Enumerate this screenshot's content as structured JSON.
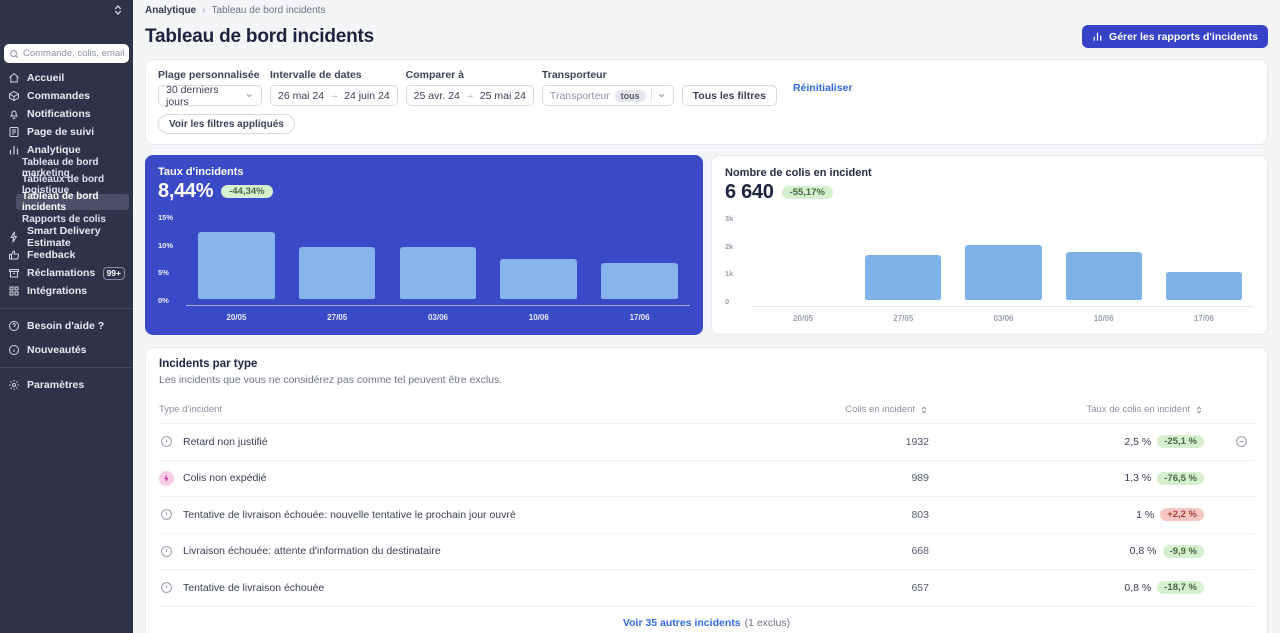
{
  "sidebar": {
    "search_placeholder": "Commande, colis, email",
    "nav": [
      {
        "label": "Accueil",
        "icon": "home"
      },
      {
        "label": "Commandes",
        "icon": "package"
      },
      {
        "label": "Notifications",
        "icon": "bell"
      },
      {
        "label": "Page de suivi",
        "icon": "tracking-page"
      },
      {
        "label": "Analytique",
        "icon": "bar-chart",
        "children": [
          "Tableau de bord marketing",
          "Tableaux de bord logistique",
          "Tableau de bord incidents",
          "Rapports de colis"
        ],
        "active_child": "Tableau de bord incidents"
      },
      {
        "label": "Smart Delivery Estimate",
        "icon": "lightning"
      },
      {
        "label": "Feedback",
        "icon": "thumbs-up"
      },
      {
        "label": "Réclamations",
        "icon": "claims-box",
        "badge": "99+"
      },
      {
        "label": "Intégrations",
        "icon": "integrations"
      }
    ],
    "help": [
      {
        "label": "Besoin d'aide ?",
        "icon": "help-circle"
      },
      {
        "label": "Nouveautés",
        "icon": "info-circle"
      }
    ],
    "settings_label": "Paramètres"
  },
  "header": {
    "breadcrumb": [
      "Analytique",
      "Tableau de bord incidents"
    ],
    "title": "Tableau de bord incidents",
    "manage_button": "Gérer les rapports d'incidents"
  },
  "filters": {
    "custom_range_label": "Plage personnalisée",
    "custom_range_value": "30 derniers jours",
    "date_interval_label": "Intervalle de dates",
    "date_from": "26 mai 24",
    "date_to": "24 juin 24",
    "compare_label": "Comparer à",
    "compare_from": "25 avr. 24",
    "compare_to": "25 mai 24",
    "carrier_label": "Transporteur",
    "carrier_placeholder": "Transporteur",
    "carrier_badge": "tous",
    "all_filters_button": "Tous les filtres",
    "reset_link": "Réinitialiser",
    "applied_filters_button": "Voir les filtres appliqués"
  },
  "chart_data": [
    {
      "type": "bar",
      "title": "Taux d'incidents",
      "metric_value": "8,44%",
      "delta": "-44,34%",
      "categories": [
        "20/05",
        "27/05",
        "03/06",
        "10/06",
        "17/06"
      ],
      "values": [
        11.9,
        9.3,
        9.3,
        7.1,
        6.5
      ],
      "unit": "%",
      "ylim": [
        0,
        15
      ],
      "yticks": [
        "15%",
        "10%",
        "5%",
        "0%"
      ],
      "bar_color": "#85b5ea",
      "grid": false,
      "legend": "none"
    },
    {
      "type": "bar",
      "title": "Nombre de colis en incident",
      "metric_value": "6 640",
      "delta": "-55,17%",
      "categories": [
        "20/05",
        "27/05",
        "03/06",
        "10/06",
        "17/06"
      ],
      "values": [
        0,
        1600,
        1980,
        1700,
        1000
      ],
      "unit": "colis",
      "ylim": [
        0,
        3000
      ],
      "yticks": [
        "3k",
        "2k",
        "1k",
        "0"
      ],
      "bar_color": "#7db3e8",
      "grid": false,
      "legend": "none"
    }
  ],
  "table": {
    "title": "Incidents par type",
    "subtitle": "Les incidents que vous ne considérez pas comme tel peuvent être exclus.",
    "columns": [
      "Type d'incident",
      "Colis en incident",
      "Taux de colis en incident"
    ],
    "rows": [
      {
        "icon": "info",
        "label": "Retard non justifié",
        "count": "1932",
        "rate": "2,5 %",
        "delta": "-25,1 %",
        "delta_type": "down",
        "exclude_icon": true
      },
      {
        "icon": "spark",
        "label": "Colis non expédié",
        "count": "989",
        "rate": "1,3 %",
        "delta": "-76,5 %",
        "delta_type": "down",
        "exclude_icon": false
      },
      {
        "icon": "info",
        "label": "Tentative de livraison échouée: nouvelle tentative le prochain jour ouvré",
        "count": "803",
        "rate": "1 %",
        "delta": "+2,2 %",
        "delta_type": "up",
        "exclude_icon": false
      },
      {
        "icon": "info",
        "label": "Livraison échouée: attente d'information du destinataire",
        "count": "668",
        "rate": "0,8 %",
        "delta": "-9,9 %",
        "delta_type": "down",
        "exclude_icon": false
      },
      {
        "icon": "info",
        "label": "Tentative de livraison échouée",
        "count": "657",
        "rate": "0,8 %",
        "delta": "-18,7 %",
        "delta_type": "down",
        "exclude_icon": false
      }
    ],
    "footer_link": "Voir 35 autres incidents",
    "footer_note": "(1 exclus)"
  },
  "colors": {
    "sidebar_bg": "#2e3447",
    "accent_blue": "#3a4ac6",
    "button_blue": "#3642c8",
    "bar_blue_left": "#85b5ea",
    "bar_blue_right": "#7db3e8",
    "badge_green_bg": "#d6efcf",
    "badge_green_text": "#44693c",
    "badge_red_bg": "#f5c6c2",
    "badge_red_text": "#a8423a",
    "link_blue": "#2e6ade"
  }
}
